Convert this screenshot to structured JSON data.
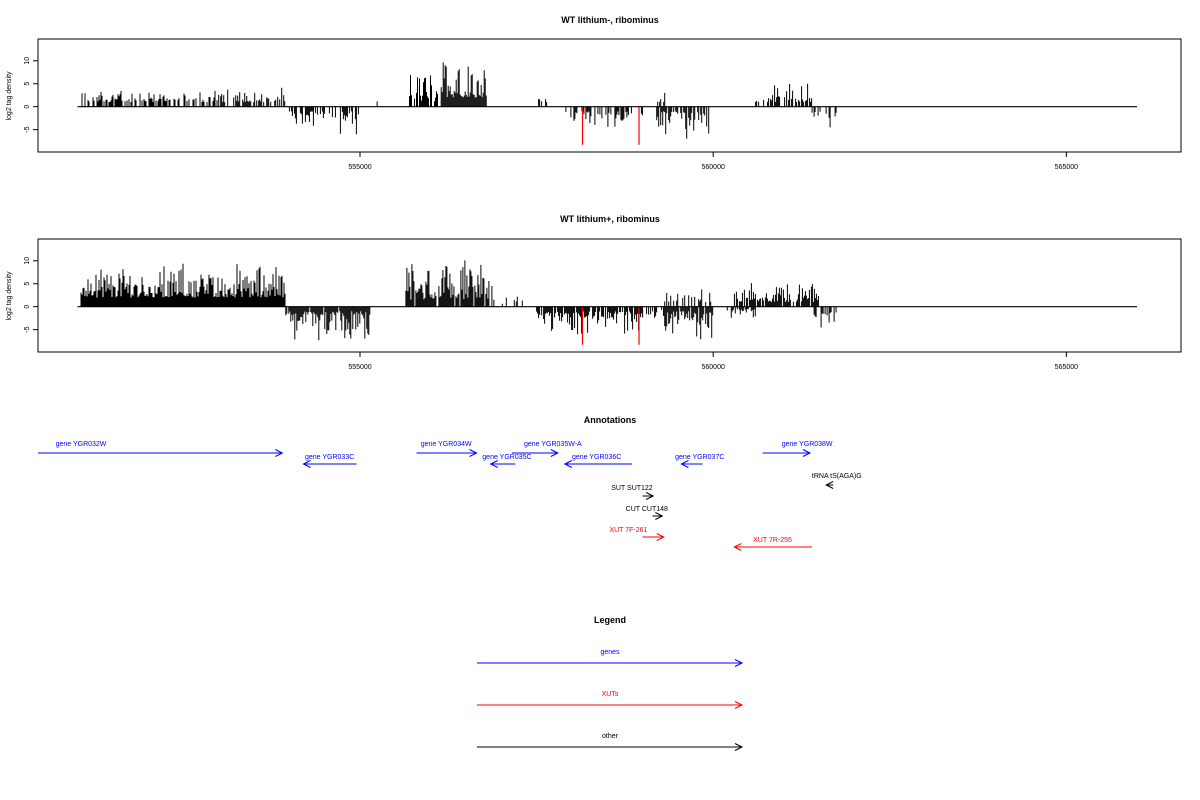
{
  "chart_data": [
    {
      "type": "bar",
      "title": "WT lithium-, ribominus",
      "ylabel": "log2 tag density",
      "xlim": [
        551000,
        566500
      ],
      "ylim": [
        -9,
        13
      ],
      "yticks": [
        -5,
        0,
        5,
        10
      ],
      "xticks": [
        555000,
        560000,
        565000
      ],
      "segments": [
        {
          "x0": 551050,
          "x1": 553000,
          "sign": 1,
          "min": 1.0,
          "max": 3.8,
          "density": 0.6
        },
        {
          "x0": 553000,
          "x1": 553950,
          "sign": 1,
          "min": 1.0,
          "max": 4.2,
          "density": 0.6
        },
        {
          "x0": 554000,
          "x1": 555000,
          "sign": -1,
          "min": 1.0,
          "max": 6.0,
          "density": 0.6
        },
        {
          "x0": 555200,
          "x1": 555260,
          "sign": 1,
          "min": 1.0,
          "max": 1.5,
          "density": 0.4
        },
        {
          "x0": 555700,
          "x1": 556100,
          "sign": 1,
          "min": 1.0,
          "max": 9.0,
          "density": 0.8
        },
        {
          "x0": 556150,
          "x1": 556800,
          "sign": 1,
          "min": 2.0,
          "max": 12.0,
          "density": 0.9
        },
        {
          "x0": 557500,
          "x1": 557700,
          "sign": 1,
          "min": 1.0,
          "max": 2.0,
          "density": 0.3
        },
        {
          "x0": 557900,
          "x1": 558800,
          "sign": -1,
          "min": 1.0,
          "max": 5.0,
          "density": 0.6
        },
        {
          "x0": 558800,
          "x1": 559000,
          "sign": -1,
          "min": 1.0,
          "max": 2.5,
          "density": 0.4
        },
        {
          "x0": 559200,
          "x1": 559950,
          "sign": -1,
          "min": 1.0,
          "max": 7.0,
          "density": 0.7
        },
        {
          "x0": 559200,
          "x1": 559350,
          "sign": 1,
          "min": 1.0,
          "max": 3.0,
          "density": 0.5
        },
        {
          "x0": 560600,
          "x1": 561400,
          "sign": 1,
          "min": 1.0,
          "max": 5.5,
          "density": 0.6
        },
        {
          "x0": 561400,
          "x1": 561750,
          "sign": -1,
          "min": 1.0,
          "max": 4.5,
          "density": 0.4
        }
      ],
      "highlight_bars": [
        {
          "x": 558150,
          "y": -8.3
        },
        {
          "x": 558950,
          "y": -8.3
        }
      ],
      "baseline": [
        551000,
        566000
      ]
    },
    {
      "type": "bar",
      "title": "WT lithium+, ribominus",
      "ylabel": "log2 tag density",
      "xlim": [
        551000,
        566500
      ],
      "ylim": [
        -9,
        13
      ],
      "yticks": [
        -5,
        0,
        5,
        10
      ],
      "xticks": [
        555000,
        560000,
        565000
      ],
      "segments": [
        {
          "x0": 551050,
          "x1": 553950,
          "sign": 1,
          "min": 2.0,
          "max": 9.5,
          "density": 1.0
        },
        {
          "x0": 553950,
          "x1": 555150,
          "sign": -1,
          "min": 1.0,
          "max": 8.0,
          "density": 0.9
        },
        {
          "x0": 555250,
          "x1": 555300,
          "sign": 1,
          "min": 1.0,
          "max": 2.0,
          "density": 0.4
        },
        {
          "x0": 555650,
          "x1": 556900,
          "sign": 1,
          "min": 1.5,
          "max": 11.0,
          "density": 0.9
        },
        {
          "x0": 557000,
          "x1": 557300,
          "sign": 1,
          "min": 0.5,
          "max": 2.5,
          "density": 0.4
        },
        {
          "x0": 557500,
          "x1": 559000,
          "sign": -1,
          "min": 1.0,
          "max": 6.0,
          "density": 0.9
        },
        {
          "x0": 559000,
          "x1": 559300,
          "sign": -1,
          "min": 0.5,
          "max": 2.5,
          "density": 0.4
        },
        {
          "x0": 559300,
          "x1": 560000,
          "sign": -1,
          "min": 1.0,
          "max": 8.0,
          "density": 0.8
        },
        {
          "x0": 559300,
          "x1": 560000,
          "sign": 1,
          "min": 1.0,
          "max": 5.0,
          "density": 0.5
        },
        {
          "x0": 560200,
          "x1": 560600,
          "sign": -1,
          "min": 0.5,
          "max": 3.0,
          "density": 0.4
        },
        {
          "x0": 560300,
          "x1": 561500,
          "sign": 1,
          "min": 1.0,
          "max": 5.5,
          "density": 0.8
        },
        {
          "x0": 561400,
          "x1": 561750,
          "sign": -1,
          "min": 1.0,
          "max": 5.0,
          "density": 0.5
        }
      ],
      "highlight_bars": [
        {
          "x": 558150,
          "y": -8.3
        },
        {
          "x": 558950,
          "y": -8.3
        }
      ],
      "baseline": [
        551000,
        566000
      ]
    }
  ],
  "annotations": {
    "title": "Annotations",
    "items": [
      {
        "label": "gene YGR032W",
        "start": 550350,
        "end": 553900,
        "row": 0,
        "kind": "gene",
        "dir": "+",
        "label_x": 551050
      },
      {
        "label": "gene YGR033C",
        "start": 554200,
        "end": 554950,
        "row": 1,
        "kind": "gene",
        "dir": "-",
        "label_x": 554570
      },
      {
        "label": "gene YGR034W",
        "start": 555800,
        "end": 556650,
        "row": 0,
        "kind": "gene",
        "dir": "+",
        "label_x": 556220
      },
      {
        "label": "gene YGR035W-A",
        "start": 557150,
        "end": 557800,
        "row": 0,
        "kind": "gene",
        "dir": "+",
        "label_x": 557730
      },
      {
        "label": "gene YGR035C",
        "start": 556850,
        "end": 557200,
        "row": 1,
        "kind": "gene",
        "dir": "-",
        "label_x": 557080
      },
      {
        "label": "gene YGR036C",
        "start": 557900,
        "end": 558850,
        "row": 1,
        "kind": "gene",
        "dir": "-",
        "label_x": 558350
      },
      {
        "label": "gene YGR037C",
        "start": 559550,
        "end": 559850,
        "row": 1,
        "kind": "gene",
        "dir": "-",
        "label_x": 559810
      },
      {
        "label": "gene YGR038W",
        "start": 560700,
        "end": 561370,
        "row": 0,
        "kind": "gene",
        "dir": "+",
        "label_x": 561330
      },
      {
        "label": "tRNA tS(AGA)G",
        "start": 561600,
        "end": 561700,
        "row": 2,
        "kind": "other",
        "dir": "-",
        "label_x": 561750
      },
      {
        "label": "SUT SUT122",
        "start": 559000,
        "end": 559150,
        "row": 3,
        "kind": "other",
        "dir": "+",
        "label_x": 558850
      },
      {
        "label": "CUT CUT148",
        "start": 559140,
        "end": 559280,
        "row": 4,
        "kind": "other",
        "dir": "+",
        "label_x": 559060
      },
      {
        "label": "XUT 7F-261",
        "start": 559000,
        "end": 559300,
        "row": 5,
        "kind": "xut",
        "dir": "+",
        "label_x": 558800
      },
      {
        "label": "XUT 7R-255",
        "start": 560300,
        "end": 561400,
        "row": 6,
        "kind": "xut",
        "dir": "-",
        "label_x": 560840
      }
    ]
  },
  "legend": {
    "title": "Legend",
    "entries": [
      {
        "label": "genes",
        "color": "#0000ff"
      },
      {
        "label": "XUTs",
        "color": "#ff0000"
      },
      {
        "label": "other",
        "color": "#000000"
      }
    ]
  },
  "colors": {
    "gene": "#0000ff",
    "xut": "#ff0000",
    "other": "#000000",
    "highlight": "#ff0000",
    "bar": "#000000"
  }
}
